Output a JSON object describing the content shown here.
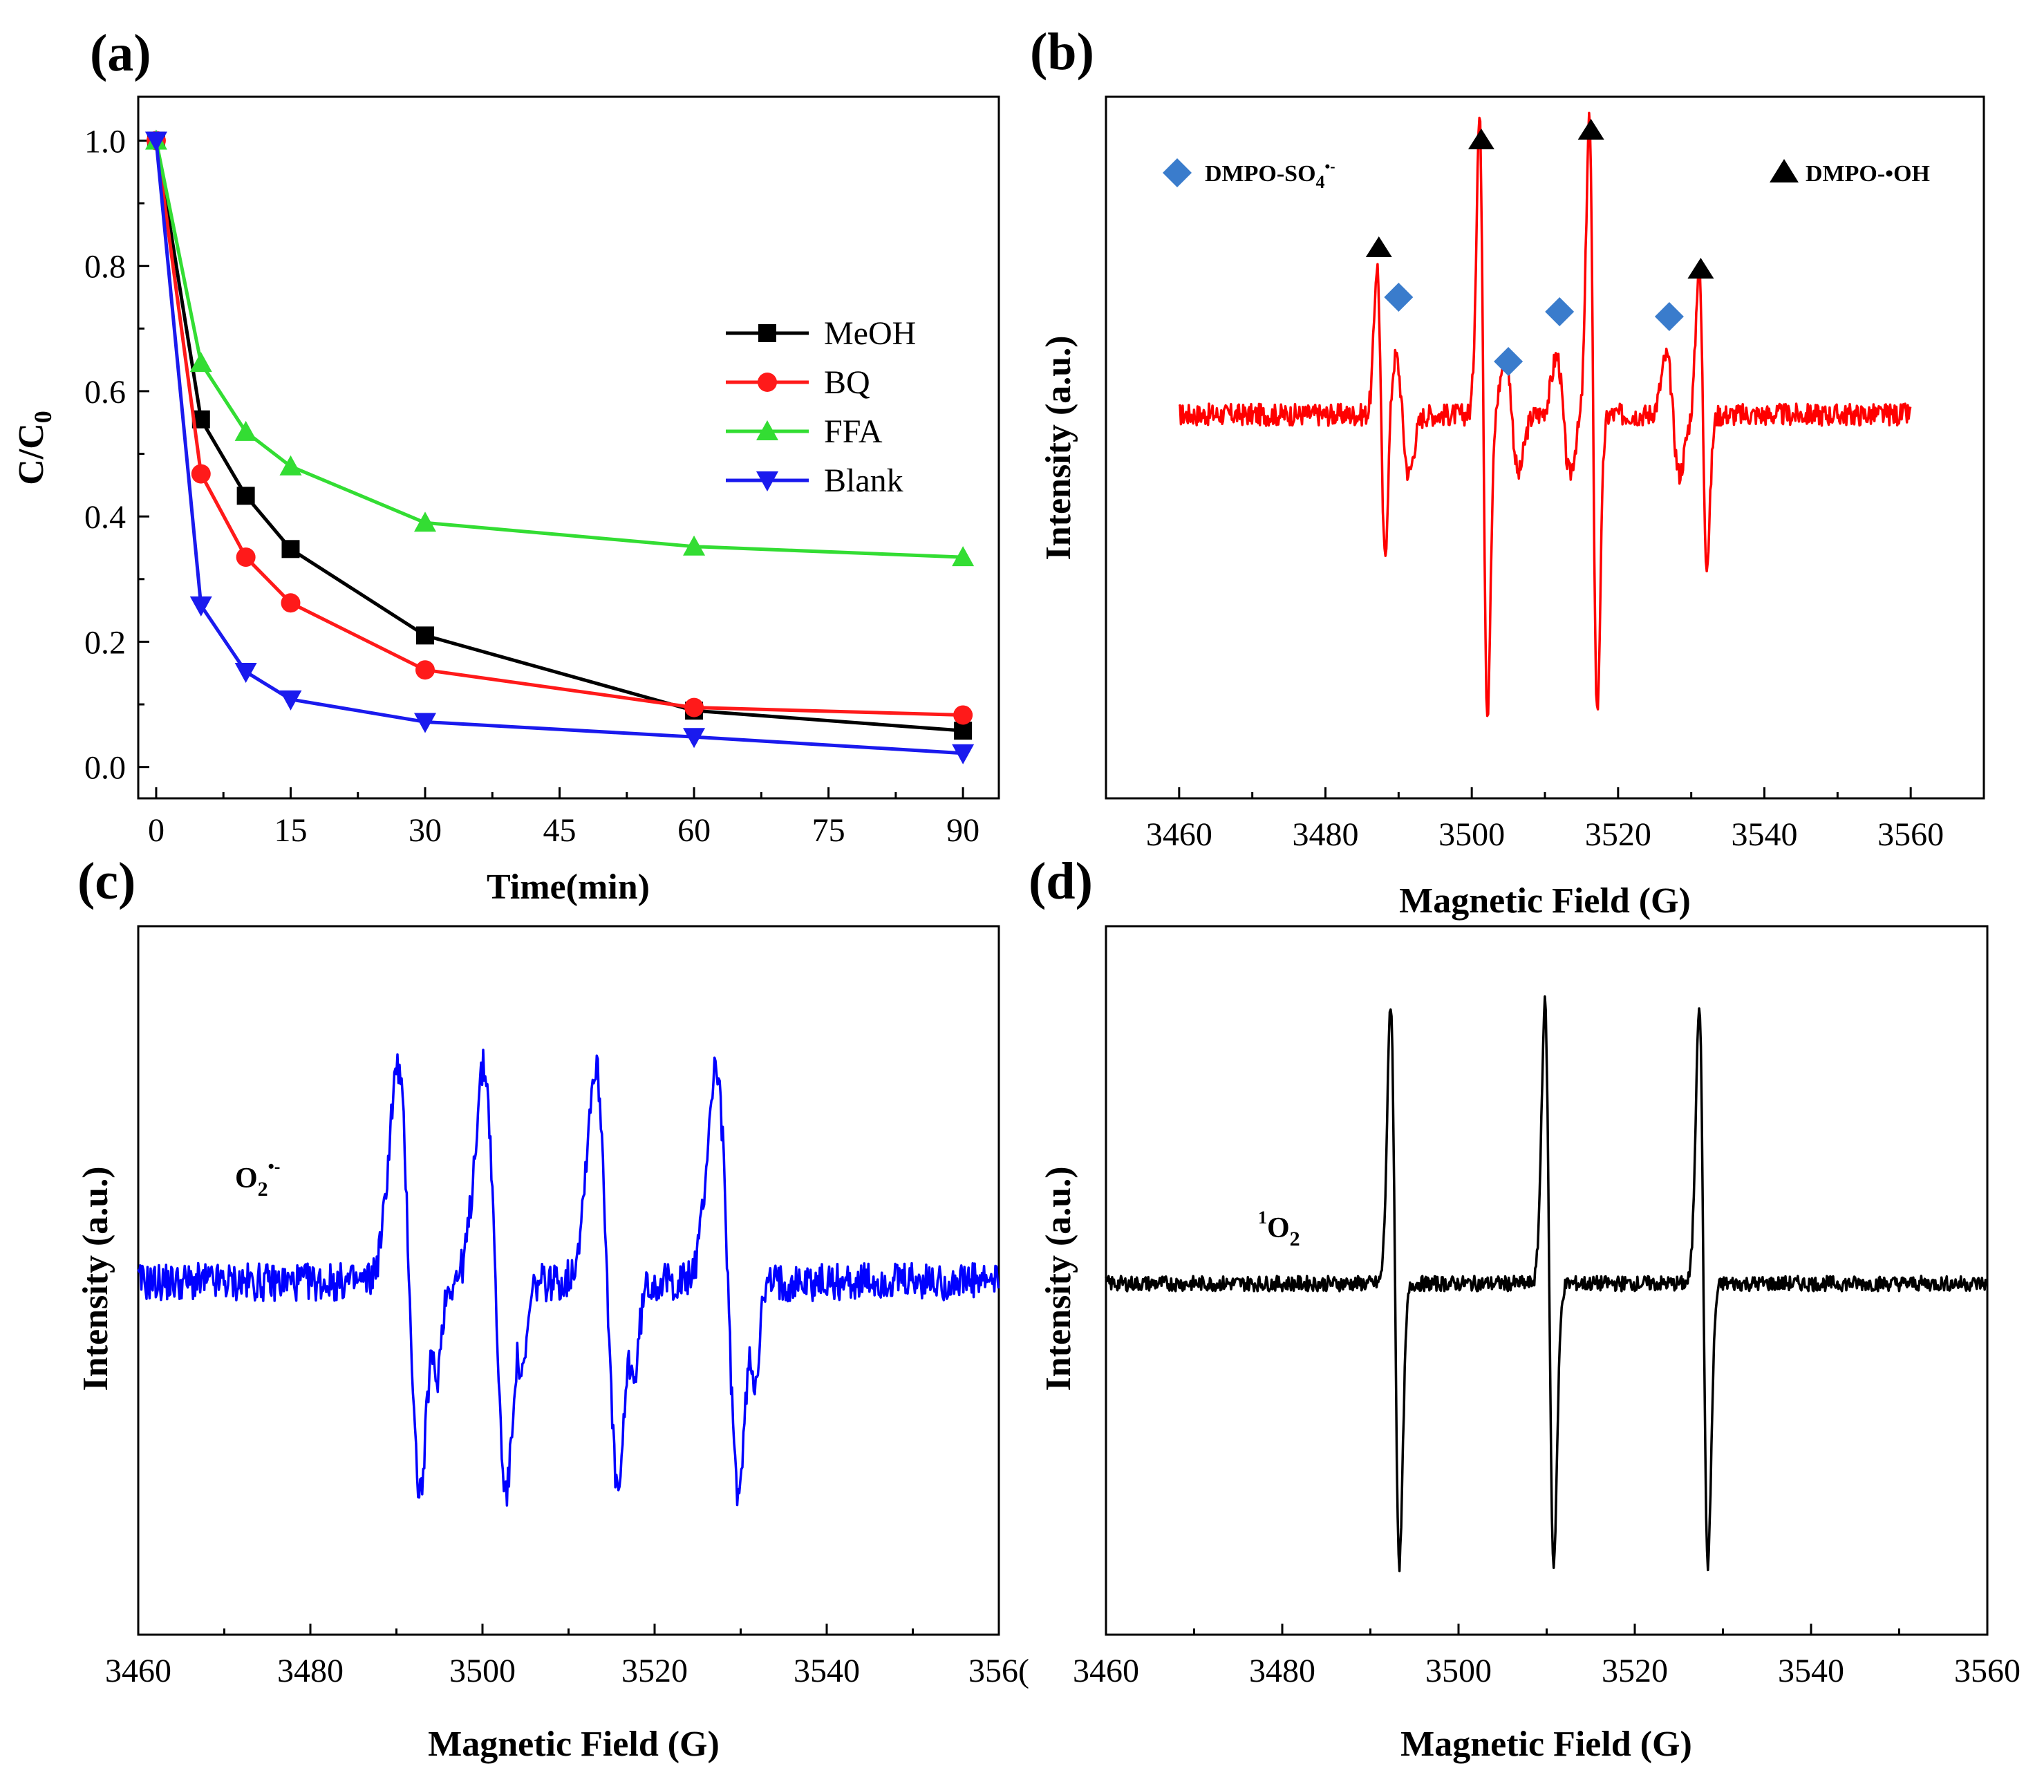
{
  "colors": {
    "meoh": "#000000",
    "bq": "#ff1a1a",
    "ffa": "#33dd33",
    "blank": "#1a1aee",
    "epr_b": "#ff0000",
    "epr_c": "#0000ff",
    "epr_d": "#000000",
    "diamond": "#3a7ccc",
    "triangle": "#000000"
  },
  "chart_data": [
    {
      "panel": "(a)",
      "type": "line",
      "xlabel": "Time(min)",
      "ylabel_main": "C/C",
      "ylabel_sub": "0",
      "xlim": [
        -2,
        94
      ],
      "ylim": [
        -0.05,
        1.07
      ],
      "x_ticks": [
        "0",
        "15",
        "30",
        "45",
        "60",
        "75",
        "90"
      ],
      "y_ticks": [
        "0.0",
        "0.2",
        "0.4",
        "0.6",
        "0.8",
        "1.0"
      ],
      "x": [
        0,
        5,
        10,
        15,
        30,
        60,
        90
      ],
      "legend_location": "right",
      "series": [
        {
          "name": "MeOH",
          "marker": "square",
          "color_key": "meoh",
          "values": [
            1.0,
            0.555,
            0.433,
            0.348,
            0.21,
            0.09,
            0.058
          ]
        },
        {
          "name": "BQ",
          "marker": "circle",
          "color_key": "bq",
          "values": [
            1.0,
            0.468,
            0.335,
            0.262,
            0.155,
            0.095,
            0.083
          ]
        },
        {
          "name": "FFA",
          "marker": "triangle-up",
          "color_key": "ffa",
          "values": [
            1.0,
            0.645,
            0.535,
            0.48,
            0.39,
            0.352,
            0.335
          ]
        },
        {
          "name": "Blank",
          "marker": "triangle-down",
          "color_key": "blank",
          "values": [
            1.0,
            0.258,
            0.152,
            0.108,
            0.072,
            0.048,
            0.022
          ]
        }
      ]
    },
    {
      "panel": "(b)",
      "type": "line",
      "xlabel": "Magnetic Field (G)",
      "ylabel": "Intensity (a.u.)",
      "xlim": [
        3450,
        3570
      ],
      "x_ticks": [
        "3460",
        "3480",
        "3500",
        "3520",
        "3540",
        "3560"
      ],
      "color_key": "epr_b",
      "annotations": {
        "sulfate_label": "DMPO-SO",
        "sulfate_sub": "4",
        "sulfate_sup": "•-",
        "hydroxyl_label": "DMPO-•OH",
        "hydroxyl_peaks_G": [
          3487,
          3501,
          3516,
          3531
        ],
        "sulfate_peaks_G": [
          3490,
          3505,
          3512,
          3527
        ]
      }
    },
    {
      "panel": "(c)",
      "type": "line",
      "xlabel": "Magnetic Field (G)",
      "ylabel": "Intensity (a.u.)",
      "xlim": [
        3460,
        3560
      ],
      "x_ticks": [
        "3460",
        "3480",
        "3500",
        "3520",
        "3540",
        "356("
      ],
      "color_key": "epr_c",
      "label_main": "O",
      "label_sub": "2",
      "label_sup": "•-",
      "peaks_G": [
        3490,
        3500,
        3513,
        3527
      ]
    },
    {
      "panel": "(d)",
      "type": "line",
      "xlabel": "Magnetic Field (G)",
      "ylabel": "Intensity (a.u.)",
      "xlim": [
        3460,
        3560
      ],
      "x_ticks": [
        "3460",
        "3480",
        "3500",
        "3520",
        "3540",
        "3560"
      ],
      "color_key": "epr_d",
      "label_sup": "1",
      "label_main": "O",
      "label_sub": "2",
      "peaks_G": [
        3492.5,
        3510,
        3527.5
      ]
    }
  ]
}
